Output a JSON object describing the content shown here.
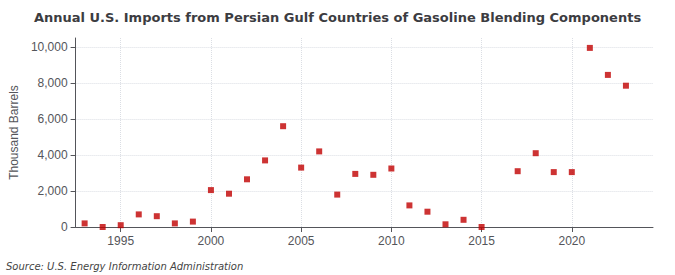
{
  "chart_data": {
    "type": "scatter",
    "title": "Annual U.S. Imports from Persian Gulf Countries of Gasoline Blending Components",
    "ylabel": "Thousand Barrels",
    "source": "Source: U.S. Energy Information Administration",
    "x": [
      1993,
      1994,
      1995,
      1996,
      1997,
      1998,
      1999,
      2000,
      2001,
      2002,
      2003,
      2004,
      2005,
      2006,
      2007,
      2008,
      2009,
      2010,
      2011,
      2012,
      2013,
      2014,
      2015,
      2017,
      2018,
      2019,
      2020,
      2021,
      2022,
      2023
    ],
    "values": [
      200,
      0,
      100,
      700,
      600,
      200,
      300,
      2050,
      1850,
      2650,
      3700,
      5600,
      3300,
      4200,
      1800,
      2950,
      2900,
      3250,
      1200,
      850,
      150,
      400,
      0,
      3100,
      4100,
      3050,
      3050,
      9950,
      8450,
      7850
    ],
    "color": "#c00000",
    "marker": "square",
    "xlim": [
      1992.5,
      2024.5
    ],
    "xticks": [
      1995,
      2000,
      2005,
      2010,
      2015,
      2020
    ],
    "ylim": [
      0,
      10500
    ],
    "yticks": [
      0,
      {
        "value": 2000,
        "label": "2,000"
      },
      {
        "value": 4000,
        "label": "4,000"
      },
      {
        "value": 6000,
        "label": "6,000"
      },
      {
        "value": 8000,
        "label": "8,000"
      },
      {
        "value": 10000,
        "label": "10,000"
      }
    ],
    "grid": true
  }
}
